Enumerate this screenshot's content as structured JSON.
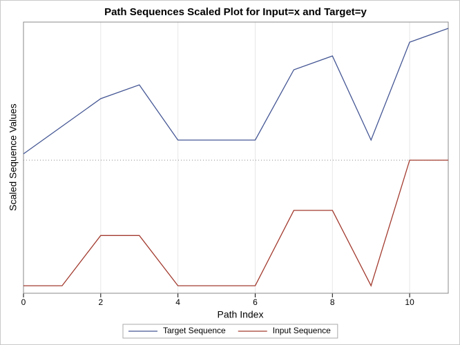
{
  "chart_data": {
    "type": "line",
    "title": "Path Sequences Scaled Plot for Input=x and Target=y",
    "x_label": "Path Index",
    "y_label": "Scaled Sequence Values",
    "x": [
      0,
      1,
      2,
      3,
      4,
      5,
      6,
      7,
      8,
      9,
      10,
      11
    ],
    "series": [
      {
        "name": "Target Sequence",
        "color": "#445694",
        "values": [
          1.05,
          1.27,
          1.49,
          1.6,
          1.16,
          1.16,
          1.16,
          1.72,
          1.83,
          1.16,
          1.94,
          2.05
        ]
      },
      {
        "name": "Input Sequence",
        "color": "#a23a2e",
        "values": [
          0,
          0,
          0.4,
          0.4,
          0,
          0,
          0,
          0.6,
          0.6,
          0,
          1,
          1
        ]
      }
    ],
    "xlim": [
      0,
      11
    ],
    "xticks": [
      0,
      2,
      4,
      6,
      8,
      10
    ],
    "ylim": [
      -0.06,
      2.1
    ],
    "reference_line": 1,
    "grid": true,
    "legend": "bottom"
  }
}
